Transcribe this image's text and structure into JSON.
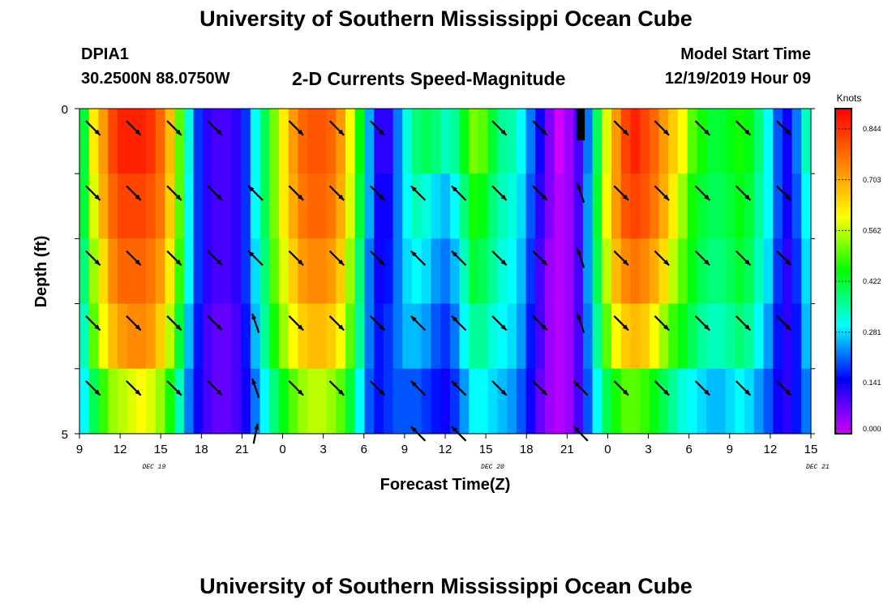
{
  "header": {
    "title": "University of Southern Mississippi Ocean Cube",
    "station_id": "DPIA1",
    "coordinates": "30.2500N 88.0750W",
    "chart_title": "2-D Currents Speed-Magnitude",
    "model_start_label": "Model Start Time",
    "model_start_value": "12/19/2019 Hour 09"
  },
  "footer": {
    "title": "University of Southern Mississippi Ocean Cube"
  },
  "colors": {
    "colormap": [
      "#d200ff",
      "#6a00ff",
      "#0000ff",
      "#0080ff",
      "#00ffff",
      "#00ff80",
      "#00ff00",
      "#80ff00",
      "#ffff00",
      "#ffc000",
      "#ff8000",
      "#ff4000",
      "#ff0000"
    ]
  },
  "chart_data": {
    "type": "heatmap",
    "title": "2-D Currents Speed-Magnitude",
    "xlabel": "Forecast Time(Z)",
    "ylabel": "Depth (ft)",
    "x_start_hour": 9,
    "x_step_hours": 1,
    "x_tick_labels": [
      "9",
      "12",
      "15",
      "18",
      "21",
      "0",
      "3",
      "6",
      "9",
      "12",
      "15",
      "18",
      "21",
      "0",
      "3",
      "6",
      "9",
      "12",
      "15"
    ],
    "date_labels": [
      {
        "label": "DEC 19",
        "hour": 14.5
      },
      {
        "label": "DEC 20",
        "hour": 39.5
      },
      {
        "label": "DEC 21",
        "hour": 63.5
      }
    ],
    "y_tick_labels": [
      "0",
      "5"
    ],
    "ylim": [
      0,
      5
    ],
    "depth_levels": 5,
    "colorbar": {
      "label": "Knots",
      "vmin": 0.0,
      "vmax": 0.9,
      "tick_labels": [
        "0.000",
        "0.141",
        "0.281",
        "0.422",
        "0.562",
        "0.703",
        "0.844"
      ]
    },
    "layers": [
      {
        "depth": 0.5,
        "speeds": [
          0.42,
          0.62,
          0.72,
          0.82,
          0.86,
          0.86,
          0.86,
          0.84,
          0.78,
          0.68,
          0.5,
          0.32,
          0.18,
          0.12,
          0.1,
          0.1,
          0.12,
          0.18,
          0.3,
          0.4,
          0.52,
          0.62,
          0.72,
          0.78,
          0.8,
          0.8,
          0.78,
          0.72,
          0.6,
          0.45,
          0.25,
          0.12,
          0.12,
          0.22,
          0.32,
          0.38,
          0.4,
          0.38,
          0.34,
          0.36,
          0.44,
          0.52,
          0.5,
          0.42,
          0.36,
          0.35,
          0.3,
          0.22,
          0.14,
          0.06,
          0.0,
          0.04,
          0.1,
          0.22,
          0.4,
          0.58,
          0.72,
          0.82,
          0.86,
          0.82,
          0.78,
          0.72,
          0.66,
          0.6,
          0.5,
          0.46,
          0.42,
          0.42,
          0.44,
          0.46,
          0.44,
          0.38,
          0.3,
          0.2,
          0.14,
          0.22,
          0.34
        ]
      },
      {
        "depth": 1.5,
        "speeds": [
          0.42,
          0.58,
          0.7,
          0.78,
          0.82,
          0.82,
          0.82,
          0.8,
          0.76,
          0.66,
          0.5,
          0.3,
          0.18,
          0.12,
          0.1,
          0.1,
          0.12,
          0.18,
          0.3,
          0.4,
          0.52,
          0.62,
          0.7,
          0.76,
          0.78,
          0.78,
          0.76,
          0.7,
          0.58,
          0.42,
          0.25,
          0.14,
          0.14,
          0.22,
          0.3,
          0.34,
          0.32,
          0.28,
          0.26,
          0.3,
          0.38,
          0.46,
          0.44,
          0.38,
          0.34,
          0.32,
          0.28,
          0.2,
          0.12,
          0.06,
          0.02,
          0.04,
          0.1,
          0.24,
          0.42,
          0.6,
          0.72,
          0.8,
          0.82,
          0.8,
          0.76,
          0.7,
          0.62,
          0.54,
          0.46,
          0.42,
          0.4,
          0.4,
          0.42,
          0.44,
          0.42,
          0.36,
          0.3,
          0.2,
          0.14,
          0.2,
          0.3
        ]
      },
      {
        "depth": 2.5,
        "speeds": [
          0.38,
          0.54,
          0.64,
          0.74,
          0.78,
          0.78,
          0.78,
          0.76,
          0.72,
          0.62,
          0.48,
          0.3,
          0.18,
          0.12,
          0.1,
          0.1,
          0.12,
          0.18,
          0.28,
          0.38,
          0.5,
          0.58,
          0.66,
          0.72,
          0.74,
          0.74,
          0.72,
          0.66,
          0.54,
          0.38,
          0.22,
          0.14,
          0.16,
          0.22,
          0.28,
          0.3,
          0.28,
          0.24,
          0.22,
          0.26,
          0.34,
          0.42,
          0.4,
          0.36,
          0.32,
          0.3,
          0.26,
          0.18,
          0.1,
          0.04,
          0.02,
          0.04,
          0.1,
          0.24,
          0.4,
          0.56,
          0.68,
          0.74,
          0.76,
          0.74,
          0.7,
          0.64,
          0.56,
          0.5,
          0.44,
          0.4,
          0.38,
          0.38,
          0.4,
          0.42,
          0.4,
          0.34,
          0.28,
          0.18,
          0.12,
          0.18,
          0.28
        ]
      },
      {
        "depth": 3.5,
        "speeds": [
          0.34,
          0.5,
          0.6,
          0.68,
          0.72,
          0.74,
          0.74,
          0.72,
          0.66,
          0.56,
          0.42,
          0.26,
          0.16,
          0.1,
          0.08,
          0.08,
          0.1,
          0.16,
          0.26,
          0.36,
          0.46,
          0.54,
          0.6,
          0.66,
          0.68,
          0.68,
          0.66,
          0.6,
          0.5,
          0.36,
          0.22,
          0.16,
          0.18,
          0.22,
          0.26,
          0.26,
          0.24,
          0.2,
          0.18,
          0.22,
          0.3,
          0.36,
          0.36,
          0.32,
          0.3,
          0.28,
          0.24,
          0.16,
          0.1,
          0.04,
          0.02,
          0.04,
          0.1,
          0.22,
          0.36,
          0.5,
          0.6,
          0.66,
          0.68,
          0.66,
          0.6,
          0.54,
          0.48,
          0.44,
          0.4,
          0.36,
          0.34,
          0.34,
          0.36,
          0.38,
          0.36,
          0.3,
          0.24,
          0.16,
          0.12,
          0.16,
          0.26
        ]
      },
      {
        "depth": 4.5,
        "speeds": [
          0.3,
          0.4,
          0.48,
          0.54,
          0.56,
          0.58,
          0.6,
          0.58,
          0.54,
          0.46,
          0.34,
          0.22,
          0.14,
          0.1,
          0.08,
          0.08,
          0.1,
          0.14,
          0.22,
          0.3,
          0.38,
          0.44,
          0.5,
          0.54,
          0.56,
          0.56,
          0.54,
          0.5,
          0.42,
          0.3,
          0.2,
          0.16,
          0.18,
          0.2,
          0.2,
          0.2,
          0.18,
          0.16,
          0.14,
          0.18,
          0.24,
          0.3,
          0.3,
          0.28,
          0.26,
          0.24,
          0.2,
          0.14,
          0.08,
          0.04,
          0.02,
          0.04,
          0.1,
          0.2,
          0.3,
          0.4,
          0.46,
          0.5,
          0.5,
          0.48,
          0.44,
          0.4,
          0.36,
          0.32,
          0.3,
          0.28,
          0.26,
          0.26,
          0.28,
          0.3,
          0.28,
          0.24,
          0.2,
          0.14,
          0.12,
          0.16,
          0.22
        ]
      }
    ],
    "arrow_columns": [
      {
        "hour": 10,
        "directions": [
          "SE",
          "SE",
          "SE",
          "SE",
          "SE",
          ""
        ]
      },
      {
        "hour": 13,
        "directions": [
          "SE",
          "SE",
          "SE",
          "SE",
          "SE",
          ""
        ]
      },
      {
        "hour": 16,
        "directions": [
          "SE",
          "SE",
          "SE",
          "SE",
          "SE",
          ""
        ]
      },
      {
        "hour": 19,
        "directions": [
          "SE",
          "SE",
          "SE",
          "SE",
          "SE",
          ""
        ]
      },
      {
        "hour": 22,
        "directions": [
          "",
          "NW",
          "NW",
          "NNW",
          "NNW",
          "NNE"
        ]
      },
      {
        "hour": 25,
        "directions": [
          "SE",
          "SE",
          "SE",
          "SE",
          "SE",
          ""
        ]
      },
      {
        "hour": 28,
        "directions": [
          "SE",
          "SE",
          "SE",
          "SE",
          "SE",
          ""
        ]
      },
      {
        "hour": 31,
        "directions": [
          "SE",
          "SE",
          "SE",
          "SE",
          "SE",
          ""
        ]
      },
      {
        "hour": 34,
        "directions": [
          "",
          "NW",
          "NW",
          "NW",
          "NW",
          "NW"
        ]
      },
      {
        "hour": 37,
        "directions": [
          "",
          "NW",
          "NW",
          "NW",
          "NW",
          "NW"
        ]
      },
      {
        "hour": 40,
        "directions": [
          "SE",
          "SE",
          "SE",
          "SE",
          "SE",
          ""
        ]
      },
      {
        "hour": 43,
        "directions": [
          "SE",
          "SE",
          "SE",
          "SE",
          "SE",
          ""
        ]
      },
      {
        "hour": 46,
        "directions": [
          "",
          "NNW",
          "NNW",
          "NNW",
          "NW",
          "NW"
        ]
      },
      {
        "hour": 49,
        "directions": [
          "SE",
          "SE",
          "SE",
          "SE",
          "SE",
          ""
        ]
      },
      {
        "hour": 52,
        "directions": [
          "SE",
          "SE",
          "SE",
          "SE",
          "SE",
          ""
        ]
      },
      {
        "hour": 55,
        "directions": [
          "SE",
          "SE",
          "SE",
          "SE",
          "SE",
          ""
        ]
      },
      {
        "hour": 58,
        "directions": [
          "SE",
          "SE",
          "SE",
          "SE",
          "SE",
          ""
        ]
      },
      {
        "hour": 61,
        "directions": [
          "SE",
          "SE",
          "SE",
          "SE",
          "SE",
          ""
        ]
      }
    ],
    "missing_data": {
      "hour": 46,
      "depth_range": [
        0,
        0.5
      ]
    }
  }
}
